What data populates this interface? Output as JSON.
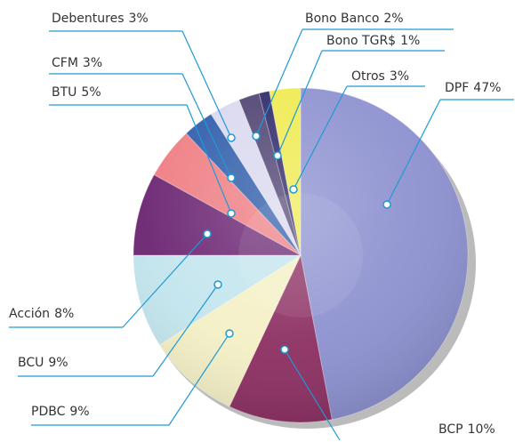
{
  "chart_data": {
    "type": "pie",
    "categories": [
      "DPF",
      "BCP",
      "PDBC",
      "BCU",
      "Acción",
      "BTU",
      "CFM",
      "Debentures",
      "Bono Banco",
      "Bono TGR$",
      "Otros"
    ],
    "values": [
      47,
      10,
      9,
      9,
      8,
      5,
      3,
      3,
      2,
      1,
      3
    ],
    "value_labels": [
      "47%",
      "10%",
      "9%",
      "9%",
      "8%",
      "5%",
      "3%",
      "3%",
      "2%",
      "1%",
      "3%"
    ],
    "colors": [
      "#8c90cf",
      "#8c2f62",
      "#f4f0c6",
      "#c3e5ee",
      "#6a2471",
      "#ee7c82",
      "#2c5aa8",
      "#d9d8ef",
      "#4d4070",
      "#2a2566",
      "#efea4e"
    ]
  }
}
